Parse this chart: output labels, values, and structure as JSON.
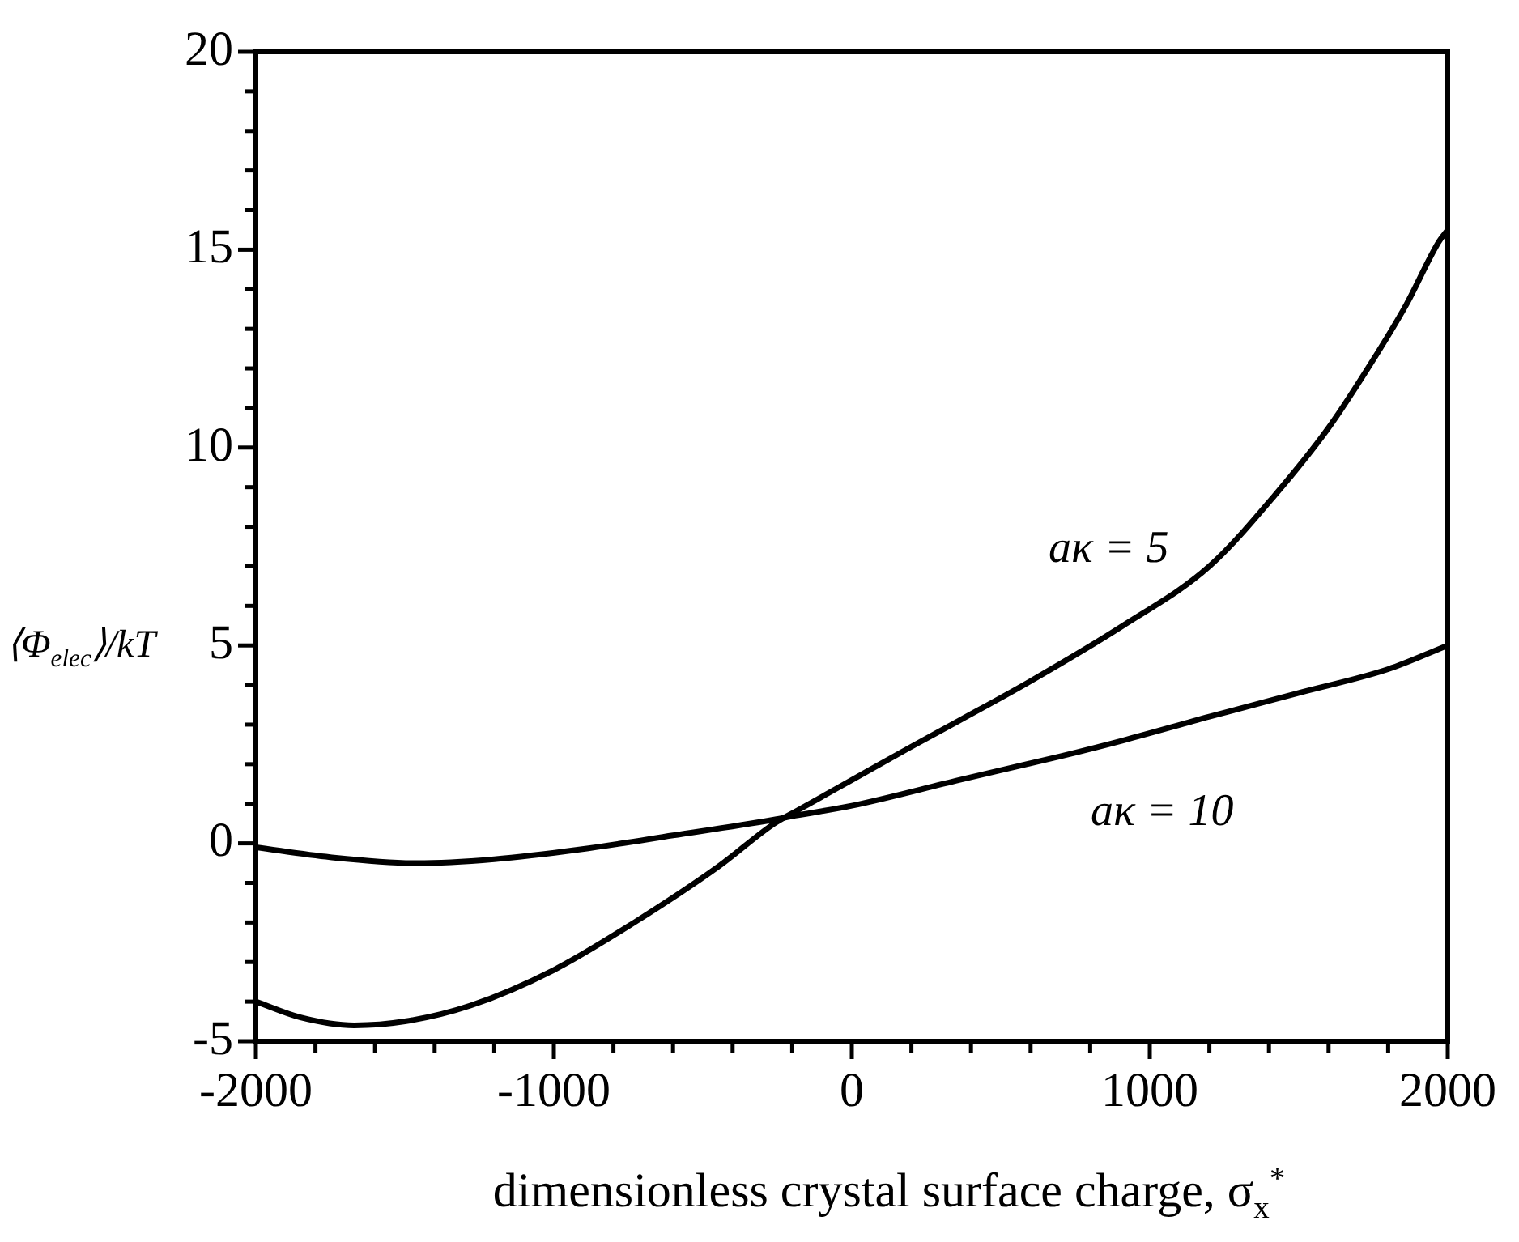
{
  "chart_data": {
    "type": "line",
    "xlabel": "dimensionless crystal surface charge, σ$_{x}$$^{*}$",
    "ylabel": "⟨Φ$_{elec}$⟩/kT",
    "xlim": [
      -2000,
      2000
    ],
    "ylim": [
      -5,
      20
    ],
    "xticks": [
      -2000,
      {
        "value": -1800,
        "label": null
      },
      {
        "value": -1600,
        "label": null
      },
      {
        "value": -1400,
        "label": null
      },
      {
        "value": -1200,
        "label": null
      },
      -1000,
      {
        "value": -800,
        "label": null
      },
      {
        "value": -600,
        "label": null
      },
      {
        "value": -400,
        "label": null
      },
      {
        "value": -200,
        "label": null
      },
      0,
      {
        "value": 200,
        "label": null
      },
      {
        "value": 400,
        "label": null
      },
      {
        "value": 600,
        "label": null
      },
      {
        "value": 800,
        "label": null
      },
      1000,
      {
        "value": 1200,
        "label": null
      },
      {
        "value": 1400,
        "label": null
      },
      {
        "value": 1600,
        "label": null
      },
      {
        "value": 1800,
        "label": null
      },
      2000
    ],
    "yticks": [
      -5,
      {
        "value": -4,
        "label": null
      },
      {
        "value": -3,
        "label": null
      },
      {
        "value": -2,
        "label": null
      },
      {
        "value": -1,
        "label": null
      },
      0,
      {
        "value": 1,
        "label": null
      },
      {
        "value": 2,
        "label": null
      },
      {
        "value": 3,
        "label": null
      },
      {
        "value": 4,
        "label": null
      },
      5,
      {
        "value": 6,
        "label": null
      },
      {
        "value": 7,
        "label": null
      },
      {
        "value": 8,
        "label": null
      },
      {
        "value": 9,
        "label": null
      },
      10,
      {
        "value": 11,
        "label": null
      },
      {
        "value": 12,
        "label": null
      },
      {
        "value": 13,
        "label": null
      },
      {
        "value": 14,
        "label": null
      },
      15,
      {
        "value": 16,
        "label": null
      },
      {
        "value": 17,
        "label": null
      },
      {
        "value": 18,
        "label": null
      },
      {
        "value": 19,
        "label": null
      },
      20
    ],
    "grid": false,
    "legend": false,
    "marker": "none",
    "line_style": "solid",
    "series": [
      {
        "name": "aκ = 5",
        "color": "#000000",
        "x": [
          -2000,
          -1850,
          -1670,
          -1500,
          -1280,
          -1000,
          -730,
          -450,
          -260,
          -190,
          0,
          190,
          360,
          600,
          910,
          1200,
          1420,
          1600,
          1740,
          1860,
          1970,
          2000
        ],
        "values": [
          -4.0,
          -4.4,
          -4.6,
          -4.5,
          -4.1,
          -3.2,
          -2.0,
          -0.6,
          0.5,
          0.8,
          1.6,
          2.4,
          3.1,
          4.1,
          5.5,
          7.0,
          8.8,
          10.5,
          12.1,
          13.6,
          15.2,
          15.5
        ]
      },
      {
        "name": "aκ = 10",
        "color": "#000000",
        "x": [
          -2000,
          -1750,
          -1460,
          -1200,
          -910,
          -600,
          -260,
          -190,
          0,
          360,
          700,
          910,
          1200,
          1500,
          1800,
          2000
        ],
        "values": [
          -0.1,
          -0.35,
          -0.5,
          -0.4,
          -0.15,
          0.2,
          0.6,
          0.7,
          0.95,
          1.6,
          2.2,
          2.6,
          3.2,
          3.8,
          4.4,
          5.0
        ]
      }
    ]
  }
}
